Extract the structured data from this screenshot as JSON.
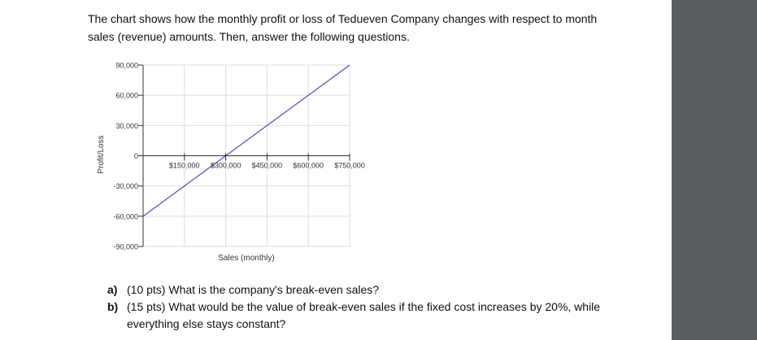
{
  "intro": "The chart shows how the monthly profit or loss of Tedueven Company changes with respect to month sales (revenue) amounts. Then, answer the following questions.",
  "chart_data": {
    "type": "line",
    "xlabel": "Sales (monthly)",
    "ylabel": "Profit/Loss",
    "xlim": [
      0,
      750000
    ],
    "ylim": [
      -90000,
      90000
    ],
    "x_ticks": [
      {
        "value": 150000,
        "label": "$150,000"
      },
      {
        "value": 300000,
        "label": "$300,000"
      },
      {
        "value": 450000,
        "label": "$450,000"
      },
      {
        "value": 600000,
        "label": "$600,000"
      },
      {
        "value": 750000,
        "label": "$750,000"
      }
    ],
    "y_ticks": [
      {
        "value": 90000,
        "label": "90,000"
      },
      {
        "value": 60000,
        "label": "60,000"
      },
      {
        "value": 30000,
        "label": "30,000"
      },
      {
        "value": 0,
        "label": "0"
      },
      {
        "value": -30000,
        "label": "-30,000"
      },
      {
        "value": -60000,
        "label": "-60,000"
      },
      {
        "value": -90000,
        "label": "-90,000"
      }
    ],
    "grid": true,
    "series": [
      {
        "x": [
          0,
          750000
        ],
        "y": [
          -60000,
          90000
        ],
        "color": "#4a4ad8"
      }
    ]
  },
  "questions": [
    {
      "label": "a)",
      "text": "(10 pts) What is the company's break-even sales?"
    },
    {
      "label": "b)",
      "text": "(15 pts) What would be the value of break-even sales if the fixed cost increases by 20%, while everything else stays constant?"
    }
  ]
}
